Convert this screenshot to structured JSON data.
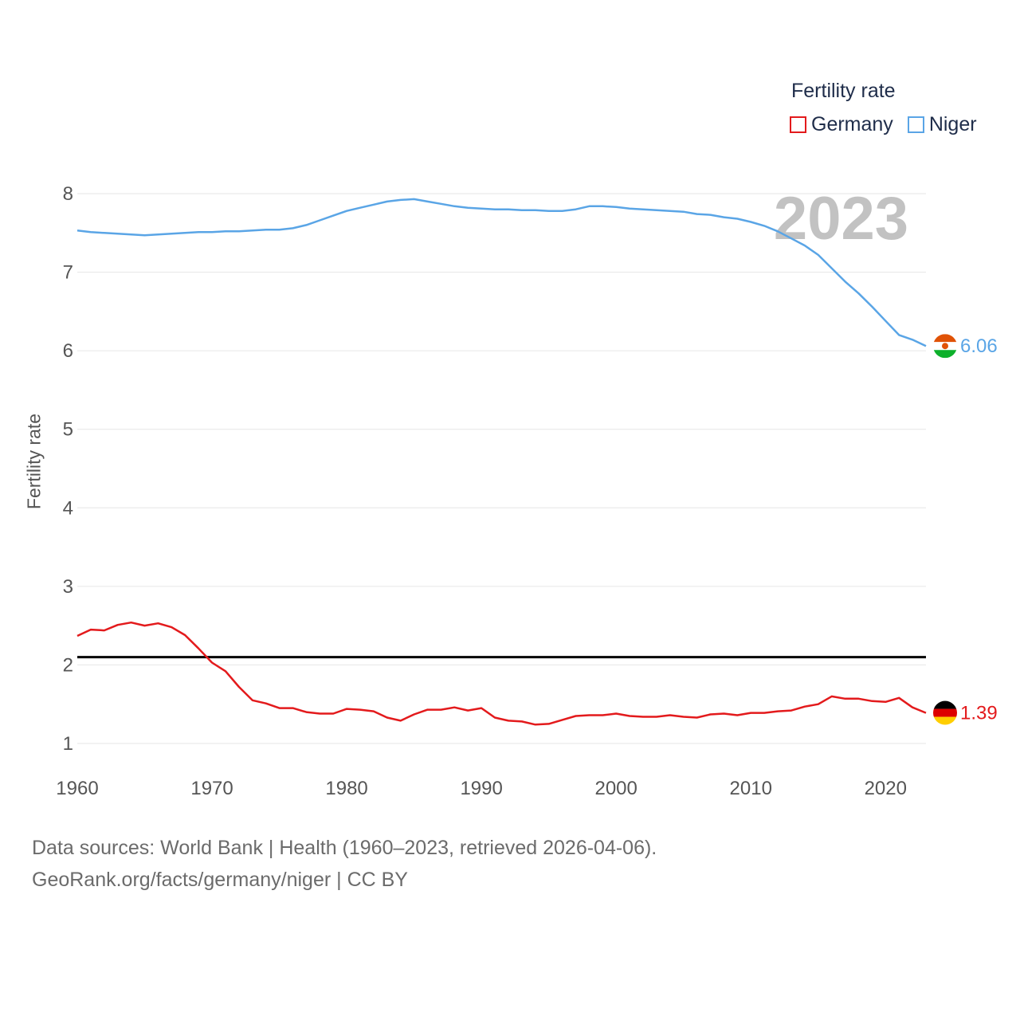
{
  "legend": {
    "title": "Fertility rate",
    "items": [
      {
        "label": "Germany",
        "color": "#e31a1c"
      },
      {
        "label": "Niger",
        "color": "#5aa5e6"
      }
    ]
  },
  "chart_data": {
    "type": "line",
    "title": "Fertility rate",
    "year_label": "2023",
    "xlabel": "",
    "ylabel": "Fertility rate",
    "xlim": [
      1960,
      2023
    ],
    "ylim": [
      0.8,
      8.2
    ],
    "x_ticks": [
      1960,
      1970,
      1980,
      1990,
      2000,
      2010,
      2020
    ],
    "y_ticks": [
      1,
      2,
      3,
      4,
      5,
      6,
      7,
      8
    ],
    "reference_line": {
      "y": 2.1,
      "color": "#000000"
    },
    "series": [
      {
        "name": "Germany",
        "color": "#e31a1c",
        "end_label": "1.39",
        "x": [
          1960,
          1961,
          1962,
          1963,
          1964,
          1965,
          1966,
          1967,
          1968,
          1969,
          1970,
          1971,
          1972,
          1973,
          1974,
          1975,
          1976,
          1977,
          1978,
          1979,
          1980,
          1981,
          1982,
          1983,
          1984,
          1985,
          1986,
          1987,
          1988,
          1989,
          1990,
          1991,
          1992,
          1993,
          1994,
          1995,
          1996,
          1997,
          1998,
          1999,
          2000,
          2001,
          2002,
          2003,
          2004,
          2005,
          2006,
          2007,
          2008,
          2009,
          2010,
          2011,
          2012,
          2013,
          2014,
          2015,
          2016,
          2017,
          2018,
          2019,
          2020,
          2021,
          2022,
          2023
        ],
        "values": [
          2.37,
          2.45,
          2.44,
          2.51,
          2.54,
          2.5,
          2.53,
          2.48,
          2.38,
          2.21,
          2.03,
          1.92,
          1.72,
          1.55,
          1.51,
          1.45,
          1.45,
          1.4,
          1.38,
          1.38,
          1.44,
          1.43,
          1.41,
          1.33,
          1.29,
          1.37,
          1.43,
          1.43,
          1.46,
          1.42,
          1.45,
          1.33,
          1.29,
          1.28,
          1.24,
          1.25,
          1.3,
          1.35,
          1.36,
          1.36,
          1.38,
          1.35,
          1.34,
          1.34,
          1.36,
          1.34,
          1.33,
          1.37,
          1.38,
          1.36,
          1.39,
          1.39,
          1.41,
          1.42,
          1.47,
          1.5,
          1.6,
          1.57,
          1.57,
          1.54,
          1.53,
          1.58,
          1.46,
          1.39
        ]
      },
      {
        "name": "Niger",
        "color": "#5aa5e6",
        "end_label": "6.06",
        "x": [
          1960,
          1961,
          1962,
          1963,
          1964,
          1965,
          1966,
          1967,
          1968,
          1969,
          1970,
          1971,
          1972,
          1973,
          1974,
          1975,
          1976,
          1977,
          1978,
          1979,
          1980,
          1981,
          1982,
          1983,
          1984,
          1985,
          1986,
          1987,
          1988,
          1989,
          1990,
          1991,
          1992,
          1993,
          1994,
          1995,
          1996,
          1997,
          1998,
          1999,
          2000,
          2001,
          2002,
          2003,
          2004,
          2005,
          2006,
          2007,
          2008,
          2009,
          2010,
          2011,
          2012,
          2013,
          2014,
          2015,
          2016,
          2017,
          2018,
          2019,
          2020,
          2021,
          2022,
          2023
        ],
        "values": [
          7.53,
          7.51,
          7.5,
          7.49,
          7.48,
          7.47,
          7.48,
          7.49,
          7.5,
          7.51,
          7.51,
          7.52,
          7.52,
          7.53,
          7.54,
          7.54,
          7.56,
          7.6,
          7.66,
          7.72,
          7.78,
          7.82,
          7.86,
          7.9,
          7.92,
          7.93,
          7.9,
          7.87,
          7.84,
          7.82,
          7.81,
          7.8,
          7.8,
          7.79,
          7.79,
          7.78,
          7.78,
          7.8,
          7.84,
          7.84,
          7.83,
          7.81,
          7.8,
          7.79,
          7.78,
          7.77,
          7.74,
          7.73,
          7.7,
          7.68,
          7.64,
          7.59,
          7.52,
          7.43,
          7.34,
          7.22,
          7.05,
          6.88,
          6.73,
          6.56,
          6.38,
          6.2,
          6.14,
          6.06
        ]
      }
    ]
  },
  "source": {
    "line1": "Data sources: World Bank | Health (1960–2023, retrieved 2026-04-06).",
    "line2": "GeoRank.org/facts/germany/niger | CC BY"
  }
}
